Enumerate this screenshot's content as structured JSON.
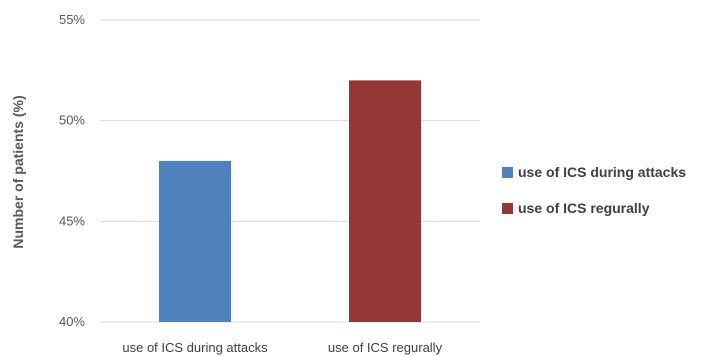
{
  "chart_data": {
    "type": "bar",
    "title": "",
    "xlabel": "",
    "ylabel": "Number of patients (%)",
    "categories": [
      "use of ICS during attacks",
      "use of ICS regurally"
    ],
    "values": [
      48,
      52
    ],
    "value_unit": "%",
    "ylim": [
      40,
      55
    ],
    "yticks": [
      40,
      45,
      50,
      55
    ],
    "ytick_labels": [
      "40%",
      "45%",
      "50%",
      "55%"
    ],
    "grid": true,
    "legend": {
      "placement": "right",
      "entries": [
        "use of ICS during attacks",
        "use of ICS regurally"
      ]
    },
    "colors": [
      "#4f81bd",
      "#953735"
    ]
  }
}
